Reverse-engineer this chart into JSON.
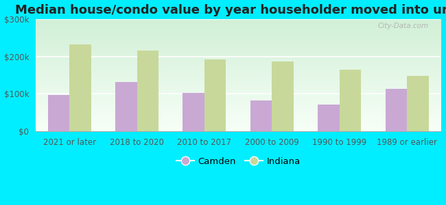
{
  "title": "Median house/condo value by year householder moved into unit",
  "categories": [
    "2021 or later",
    "2018 to 2020",
    "2010 to 2017",
    "2000 to 2009",
    "1990 to 1999",
    "1989 or earlier"
  ],
  "camden_values": [
    98000,
    132000,
    103000,
    82000,
    72000,
    113000
  ],
  "indiana_values": [
    232000,
    215000,
    193000,
    187000,
    165000,
    148000
  ],
  "camden_color": "#c9a8d4",
  "indiana_color": "#c8d89a",
  "figure_bg": "#00eeff",
  "ylim": [
    0,
    300000
  ],
  "yticks": [
    0,
    100000,
    200000,
    300000
  ],
  "ytick_labels": [
    "$0",
    "$100k",
    "$200k",
    "$300k"
  ],
  "legend_labels": [
    "Camden",
    "Indiana"
  ],
  "watermark": "City-Data.com",
  "title_fontsize": 13,
  "tick_fontsize": 8.5,
  "legend_fontsize": 9.5
}
